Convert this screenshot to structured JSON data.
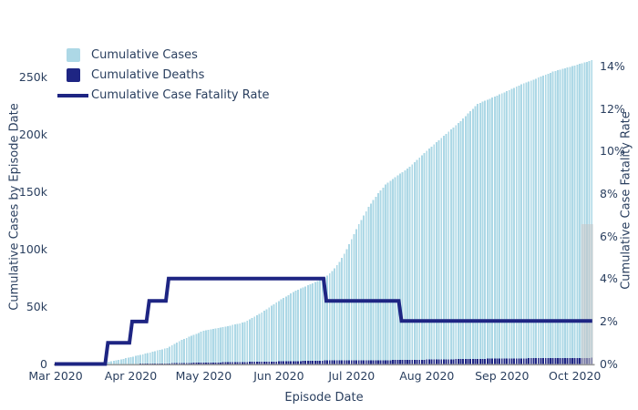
{
  "legend": {
    "items": [
      {
        "label": "Cumulative Cases",
        "swatch": "square",
        "color": "#ADD8E6"
      },
      {
        "label": "Cumulative Deaths",
        "swatch": "square",
        "color": "#1e2583"
      },
      {
        "label": "Cumulative Case Fatality Rate",
        "swatch": "line",
        "color": "#1e2583"
      }
    ]
  },
  "axes": {
    "x": {
      "title": "Episode Date",
      "tick_labels": [
        "Mar 2020",
        "Apr 2020",
        "May 2020",
        "Jun 2020",
        "Jul 2020",
        "Aug 2020",
        "Sep 2020",
        "Oct 2020"
      ],
      "tick_days": [
        0,
        31,
        61,
        92,
        122,
        153,
        184,
        214
      ]
    },
    "y_left": {
      "title": "Cumulative Cases by Episode Date",
      "tick_labels": [
        "0",
        "50k",
        "100k",
        "150k",
        "200k",
        "250k"
      ],
      "tick_values": [
        0,
        50000,
        100000,
        150000,
        200000,
        250000
      ],
      "max": 250000
    },
    "y_right": {
      "title": "Cumulative Case Fatality Rate",
      "tick_labels": [
        "0%",
        "2%",
        "4%",
        "6%",
        "8%",
        "10%",
        "12%",
        "14%"
      ],
      "tick_values": [
        0,
        2,
        4,
        6,
        8,
        10,
        12,
        14
      ],
      "max": 14
    }
  },
  "chart_data": {
    "type": "bar+line combo",
    "x_start_date": "2020-03-01",
    "x_end_date": "2020-10-08",
    "days_total": 221,
    "grid": false,
    "legend_position": "top-left-inside",
    "series": [
      {
        "name": "Cumulative Cases",
        "type": "bar",
        "axis": "left",
        "color": "#ADD8E6",
        "anchors_day_value": [
          [
            0,
            0
          ],
          [
            9,
            60
          ],
          [
            14,
            350
          ],
          [
            19,
            1000
          ],
          [
            24,
            2600
          ],
          [
            31,
            6000
          ],
          [
            38,
            9500
          ],
          [
            46,
            14000
          ],
          [
            52,
            21000
          ],
          [
            61,
            29000
          ],
          [
            70,
            32500
          ],
          [
            78,
            36500
          ],
          [
            85,
            45000
          ],
          [
            92,
            55000
          ],
          [
            99,
            64000
          ],
          [
            106,
            70500
          ],
          [
            111,
            75000
          ],
          [
            114,
            81000
          ],
          [
            117,
            89000
          ],
          [
            120,
            100000
          ],
          [
            122,
            109000
          ],
          [
            125,
            122000
          ],
          [
            129,
            137000
          ],
          [
            133,
            149000
          ],
          [
            136,
            156500
          ],
          [
            139,
            161500
          ],
          [
            142,
            166000
          ],
          [
            146,
            172000
          ],
          [
            153,
            186000
          ],
          [
            160,
            199000
          ],
          [
            167,
            212000
          ],
          [
            174,
            227000
          ],
          [
            184,
            236000
          ],
          [
            191,
            243000
          ],
          [
            198,
            249000
          ],
          [
            205,
            255000
          ],
          [
            214,
            260500
          ],
          [
            221,
            265000
          ]
        ]
      },
      {
        "name": "Cumulative Deaths",
        "type": "bar",
        "axis": "left",
        "color": "#1e2583",
        "anchors_day_value": [
          [
            0,
            0
          ],
          [
            19,
            0
          ],
          [
            21,
            15
          ],
          [
            31,
            120
          ],
          [
            38,
            285
          ],
          [
            46,
            560
          ],
          [
            61,
            1160
          ],
          [
            92,
            2200
          ],
          [
            111,
            3000
          ],
          [
            122,
            3300
          ],
          [
            142,
            3400
          ],
          [
            153,
            3800
          ],
          [
            184,
            4800
          ],
          [
            221,
            5380
          ]
        ]
      },
      {
        "name": "Cumulative Case Fatality Rate",
        "type": "step-line",
        "axis": "right",
        "unit": "%",
        "color": "#1e2583",
        "steps_day_value": [
          [
            0,
            0
          ],
          [
            21,
            1.0
          ],
          [
            31,
            2.0
          ],
          [
            38,
            2.97
          ],
          [
            46,
            4.02
          ],
          [
            111,
            2.97
          ],
          [
            142,
            2.03
          ]
        ]
      }
    ],
    "highlight_band": {
      "day_start": 217,
      "day_end": 221,
      "top_value": 122000,
      "color": "rgba(199,199,199,0.55)"
    }
  },
  "colors": {
    "text": "#2a3f5f",
    "axis_line": "#9b9b9b",
    "background": "#ffffff"
  }
}
